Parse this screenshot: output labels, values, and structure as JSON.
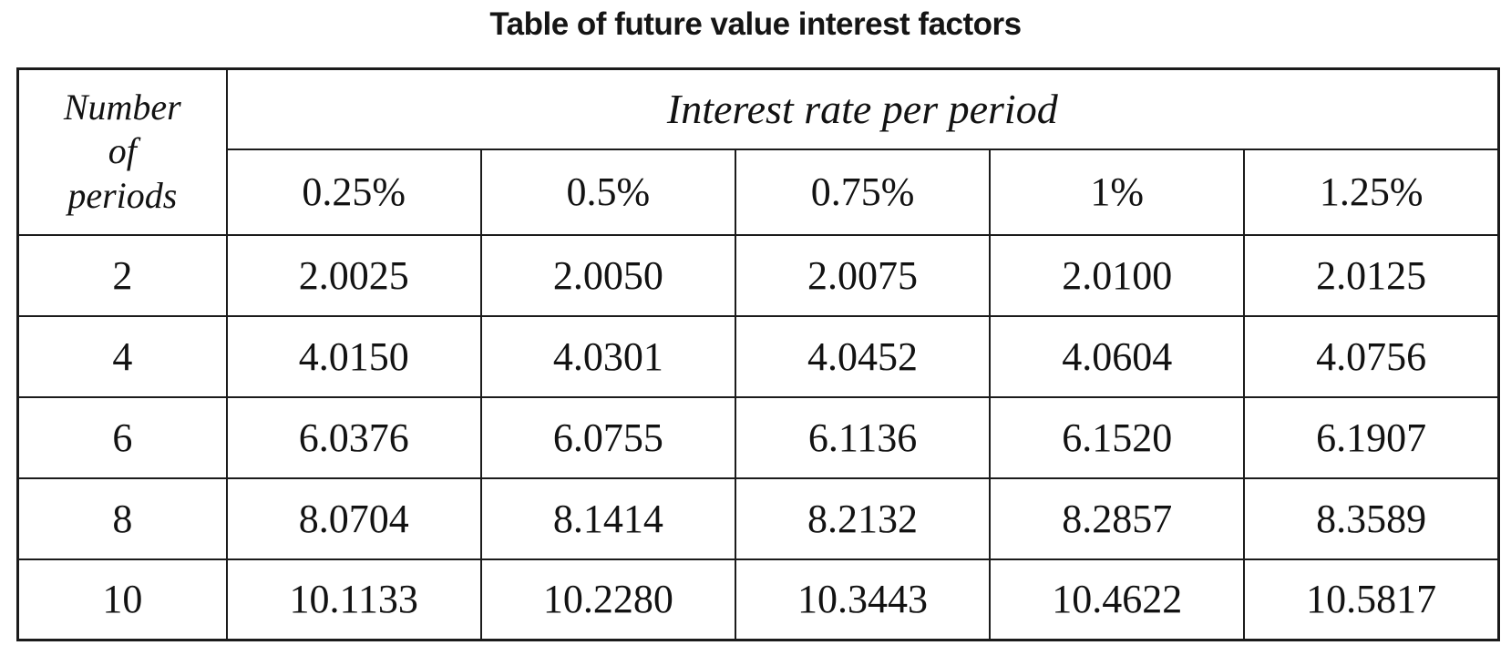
{
  "title": "Table of future value interest factors",
  "chart_data": {
    "type": "table",
    "title": "Table of future value interest factors",
    "corner_header": "Number\nof\nperiods",
    "group_header": "Interest rate per period",
    "columns": [
      "0.25%",
      "0.5%",
      "0.75%",
      "1%",
      "1.25%"
    ],
    "rows": [
      {
        "periods": "2",
        "values": [
          "2.0025",
          "2.0050",
          "2.0075",
          "2.0100",
          "2.0125"
        ]
      },
      {
        "periods": "4",
        "values": [
          "4.0150",
          "4.0301",
          "4.0452",
          "4.0604",
          "4.0756"
        ]
      },
      {
        "periods": "6",
        "values": [
          "6.0376",
          "6.0755",
          "6.1136",
          "6.1520",
          "6.1907"
        ]
      },
      {
        "periods": "8",
        "values": [
          "8.0704",
          "8.1414",
          "8.2132",
          "8.2857",
          "8.3589"
        ]
      },
      {
        "periods": "10",
        "values": [
          "10.1133",
          "10.2280",
          "10.3443",
          "10.4622",
          "10.5817"
        ]
      }
    ],
    "layout": {
      "grid": "on",
      "border_color": "#1b1b1b"
    }
  }
}
